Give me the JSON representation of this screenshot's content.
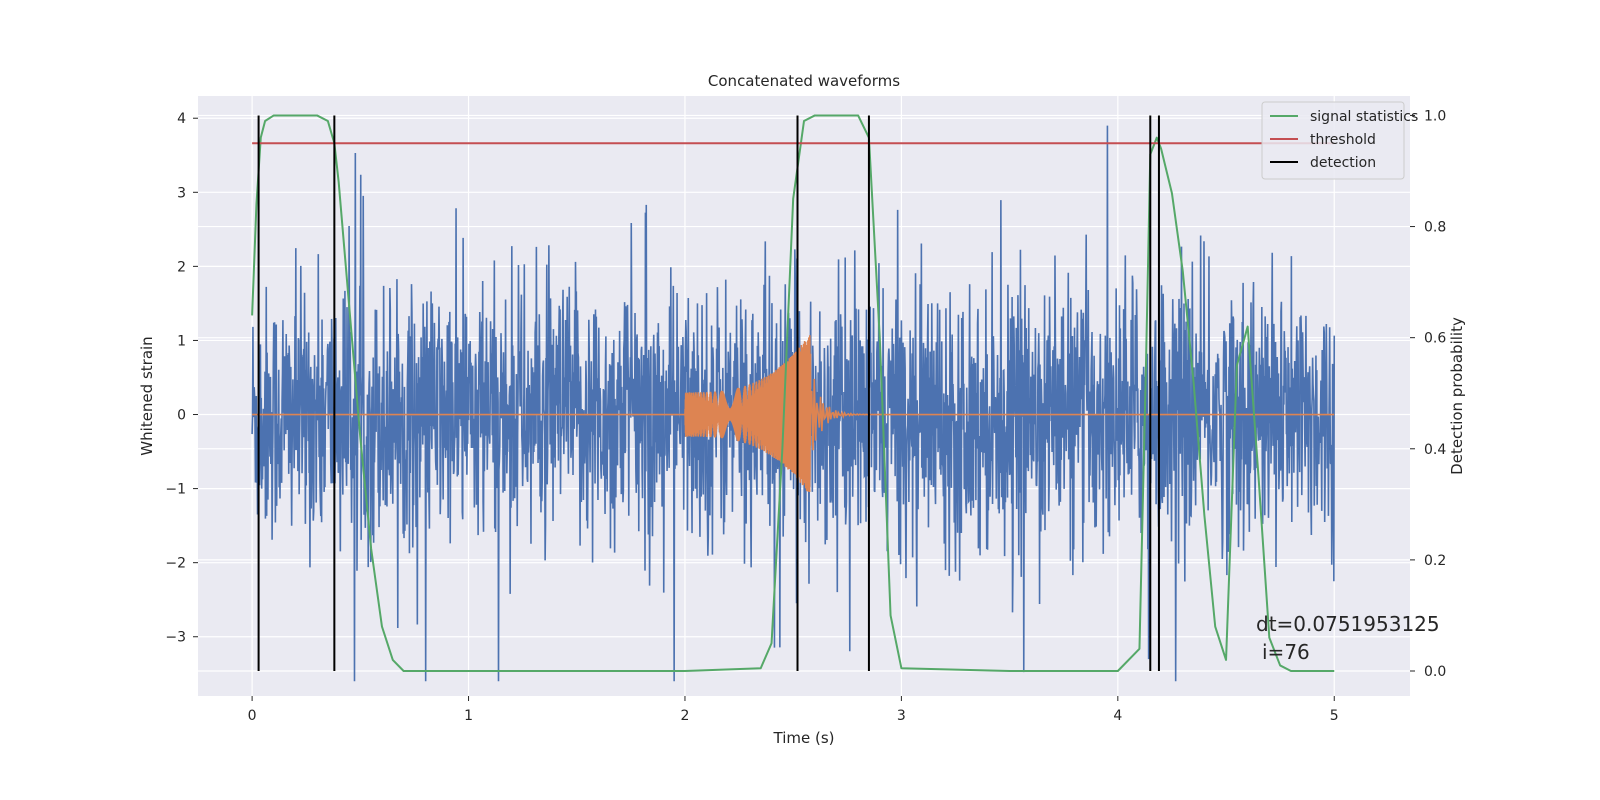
{
  "chart_data": {
    "type": "line",
    "title": "Concatenated waveforms",
    "xlabel": "Time (s)",
    "ylabel": "Whitened strain",
    "y2label": "Detection probability",
    "xlim": [
      -0.25,
      5.35
    ],
    "ylim": [
      -3.8,
      4.3
    ],
    "y2lim": [
      -0.045,
      1.035
    ],
    "x_ticks": [
      0,
      1,
      2,
      3,
      4,
      5
    ],
    "x_tick_labels": [
      "0",
      "1",
      "2",
      "3",
      "4",
      "5"
    ],
    "y_ticks": [
      -3,
      -2,
      -1,
      0,
      1,
      2,
      3,
      4
    ],
    "y_tick_labels": [
      "−3",
      "−2",
      "−1",
      "0",
      "1",
      "2",
      "3",
      "4"
    ],
    "y2_ticks": [
      0.0,
      0.2,
      0.4,
      0.6,
      0.8,
      1.0
    ],
    "y2_tick_labels": [
      "0.0",
      "0.2",
      "0.4",
      "0.6",
      "0.8",
      "1.0"
    ],
    "grid": true,
    "legend_position": "top-right",
    "series": [
      {
        "name": "whitened strain",
        "axis": "left",
        "color": "#4c72b0",
        "kind": "noise",
        "x_range": [
          0,
          5
        ],
        "envelope": 2.9,
        "in_legend": false
      },
      {
        "name": "injected waveform",
        "axis": "left",
        "color": "#dd8452",
        "kind": "chirp",
        "x_range": [
          0,
          5
        ],
        "chirp_start": 2.0,
        "chirp_peak": 2.58,
        "chirp_end": 2.6,
        "start_amplitude": 0.3,
        "peak_amplitude": 1.1,
        "in_legend": false
      },
      {
        "name": "signal statistics",
        "axis": "right",
        "color": "#55a868",
        "in_legend": true,
        "x": [
          0.0,
          0.02,
          0.04,
          0.06,
          0.1,
          0.2,
          0.3,
          0.35,
          0.38,
          0.4,
          0.45,
          0.5,
          0.55,
          0.6,
          0.65,
          0.7,
          1.0,
          2.0,
          2.35,
          2.4,
          2.45,
          2.5,
          2.55,
          2.6,
          2.65,
          2.7,
          2.75,
          2.8,
          2.85,
          2.9,
          2.95,
          3.0,
          3.5,
          4.0,
          4.1,
          4.13,
          4.15,
          4.18,
          4.2,
          4.25,
          4.3,
          4.35,
          4.4,
          4.45,
          4.5,
          4.55,
          4.6,
          4.65,
          4.7,
          4.75,
          4.8,
          4.9,
          5.0
        ],
        "values": [
          0.64,
          0.84,
          0.96,
          0.99,
          1.0,
          1.0,
          1.0,
          0.99,
          0.95,
          0.88,
          0.65,
          0.42,
          0.22,
          0.08,
          0.02,
          0.0,
          0.0,
          0.0,
          0.005,
          0.05,
          0.4,
          0.85,
          0.99,
          1.0,
          1.0,
          1.0,
          1.0,
          1.0,
          0.96,
          0.6,
          0.1,
          0.005,
          0.0,
          0.0,
          0.04,
          0.55,
          0.93,
          0.96,
          0.94,
          0.86,
          0.72,
          0.52,
          0.28,
          0.08,
          0.02,
          0.55,
          0.62,
          0.35,
          0.06,
          0.01,
          0.0,
          0.0,
          0.0
        ]
      },
      {
        "name": "threshold",
        "axis": "right",
        "color": "#c44e52",
        "in_legend": true,
        "x": [
          0.0,
          5.0
        ],
        "values": [
          0.95,
          0.95
        ]
      }
    ],
    "detections": {
      "name": "detection",
      "color": "#000000",
      "in_legend": true,
      "x": [
        0.03,
        0.38,
        2.52,
        2.85,
        4.15,
        4.19
      ],
      "y_range": [
        0.0,
        1.0
      ]
    },
    "legend": [
      "signal statistics",
      "threshold",
      "detection"
    ],
    "annotations": [
      "dt=0.0751953125",
      "i=76"
    ]
  }
}
